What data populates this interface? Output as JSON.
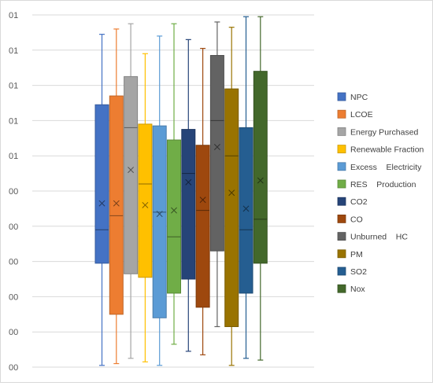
{
  "chart_data": {
    "type": "box",
    "title": "",
    "xlabel": "",
    "ylabel": "",
    "ylim": [
      0,
      10
    ],
    "ytick_labels": [
      "00",
      "00",
      "00",
      "00",
      "00",
      "00",
      "01",
      "01",
      "01",
      "01",
      "01"
    ],
    "grid": true,
    "legend_position": "right",
    "series": [
      {
        "name": "NPC",
        "color": "#4472C4",
        "min": 0.05,
        "q1": 2.95,
        "median": 3.9,
        "q3": 7.45,
        "max": 9.45,
        "mean": 4.65
      },
      {
        "name": "LCOE",
        "color": "#ED7D31",
        "min": 0.1,
        "q1": 1.5,
        "median": 4.3,
        "q3": 7.7,
        "max": 9.6,
        "mean": 4.65
      },
      {
        "name": "Energy Purchased",
        "color": "#A5A5A5",
        "min": 0.25,
        "q1": 2.65,
        "median": 6.8,
        "q3": 8.25,
        "max": 9.75,
        "mean": 5.6
      },
      {
        "name": "Renewable Fraction",
        "color": "#FFC000",
        "min": 0.15,
        "q1": 2.55,
        "median": 5.2,
        "q3": 6.9,
        "max": 8.9,
        "mean": 4.6
      },
      {
        "name": "Excess Electricity",
        "color": "#5B9BD5",
        "min": 0.05,
        "q1": 1.4,
        "median": 4.4,
        "q3": 6.85,
        "max": 9.4,
        "mean": 4.35
      },
      {
        "name": "RES Production",
        "color": "#70AD47",
        "min": 0.65,
        "q1": 2.1,
        "median": 3.7,
        "q3": 6.45,
        "max": 9.75,
        "mean": 4.45
      },
      {
        "name": "CO2",
        "color": "#264478",
        "min": 0.45,
        "q1": 2.5,
        "median": 5.5,
        "q3": 6.75,
        "max": 9.3,
        "mean": 5.25
      },
      {
        "name": "CO",
        "color": "#9E480E",
        "min": 0.35,
        "q1": 1.7,
        "median": 4.45,
        "q3": 6.3,
        "max": 9.05,
        "mean": 4.75
      },
      {
        "name": "Unburned HC",
        "color": "#636363",
        "min": 1.15,
        "q1": 3.3,
        "median": 7.0,
        "q3": 8.85,
        "max": 9.8,
        "mean": 6.25
      },
      {
        "name": "PM",
        "color": "#997300",
        "min": 0.05,
        "q1": 1.15,
        "median": 6.0,
        "q3": 7.9,
        "max": 9.65,
        "mean": 4.95
      },
      {
        "name": "SO2",
        "color": "#255E91",
        "min": 0.25,
        "q1": 2.1,
        "median": 3.9,
        "q3": 6.8,
        "max": 9.95,
        "mean": 4.5
      },
      {
        "name": "Nox",
        "color": "#43682B",
        "min": 0.2,
        "q1": 2.95,
        "median": 4.2,
        "q3": 8.4,
        "max": 9.95,
        "mean": 5.3
      }
    ]
  },
  "legend": {
    "labels": [
      "NPC",
      "LCOE",
      "Energy Purchased",
      "Renewable Fraction",
      "Excess    Electricity",
      "RES    Production",
      "CO2",
      "CO",
      "Unburned    HC",
      "PM",
      "SO2",
      "Nox"
    ]
  }
}
